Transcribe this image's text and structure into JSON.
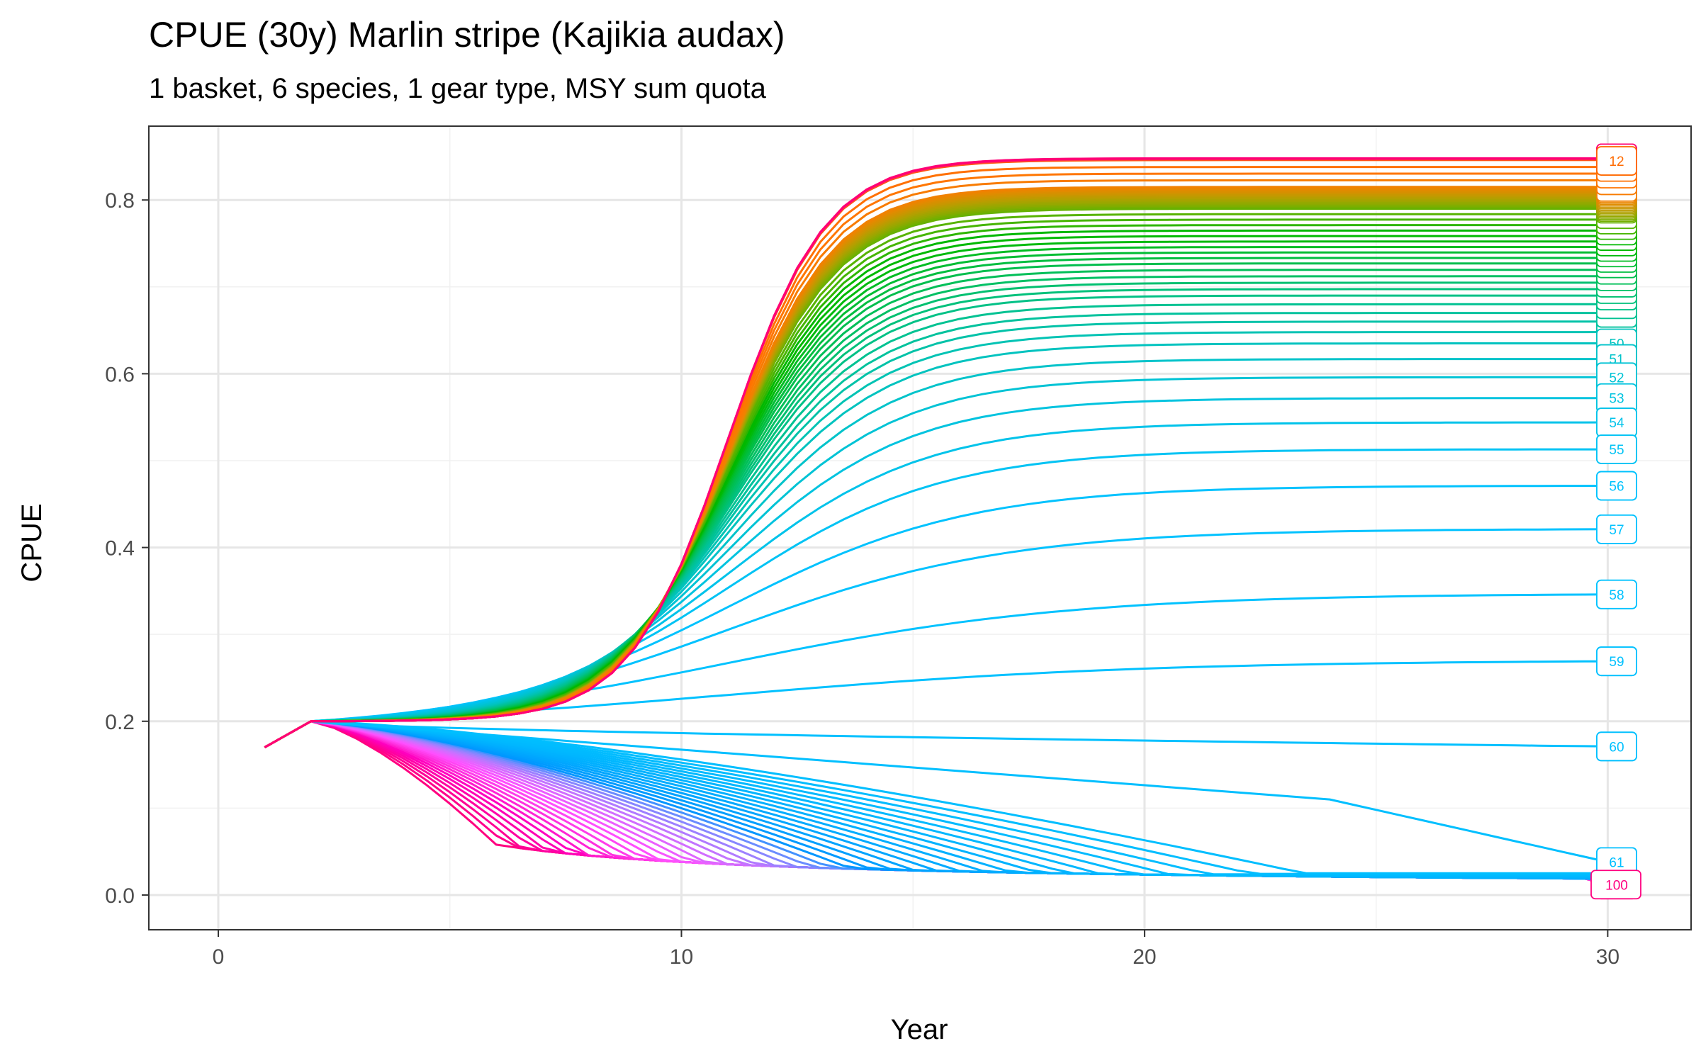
{
  "chart_data": {
    "type": "line",
    "title": "CPUE (30y) Marlin stripe (Kajikia audax)",
    "subtitle": "1 basket, 6 species, 1 gear type, MSY sum quota",
    "xlabel": "Year",
    "ylabel": "CPUE",
    "xlim": [
      -1.5,
      31.8
    ],
    "ylim": [
      -0.04,
      0.885
    ],
    "xticks": [
      "0",
      "10",
      "20",
      "30"
    ],
    "yticks": [
      "0.0",
      "0.2",
      "0.4",
      "0.6",
      "0.8"
    ],
    "grid": true,
    "legend": "none",
    "start": {
      "x": [
        1,
        2
      ],
      "y": [
        0.17,
        0.2
      ]
    },
    "series_count": 100,
    "series_group": "scenarios 1 to 100, lines run from year 1 to year 30",
    "final_values_selected": [
      {
        "name": "12",
        "y": 0.845
      },
      {
        "name": "50",
        "y": 0.635
      },
      {
        "name": "51",
        "y": 0.617
      },
      {
        "name": "52",
        "y": 0.596
      },
      {
        "name": "53",
        "y": 0.572
      },
      {
        "name": "54",
        "y": 0.544
      },
      {
        "name": "55",
        "y": 0.513
      },
      {
        "name": "56",
        "y": 0.471
      },
      {
        "name": "57",
        "y": 0.421
      },
      {
        "name": "58",
        "y": 0.346
      },
      {
        "name": "59",
        "y": 0.269
      },
      {
        "name": "60",
        "y": 0.171
      },
      {
        "name": "61",
        "y": 0.038
      },
      {
        "name": "100",
        "y": 0.012
      }
    ],
    "visible_labels": [
      "12",
      "50",
      "51",
      "52",
      "53",
      "54",
      "55",
      "56",
      "57",
      "58",
      "59",
      "60",
      "61",
      "100"
    ]
  }
}
